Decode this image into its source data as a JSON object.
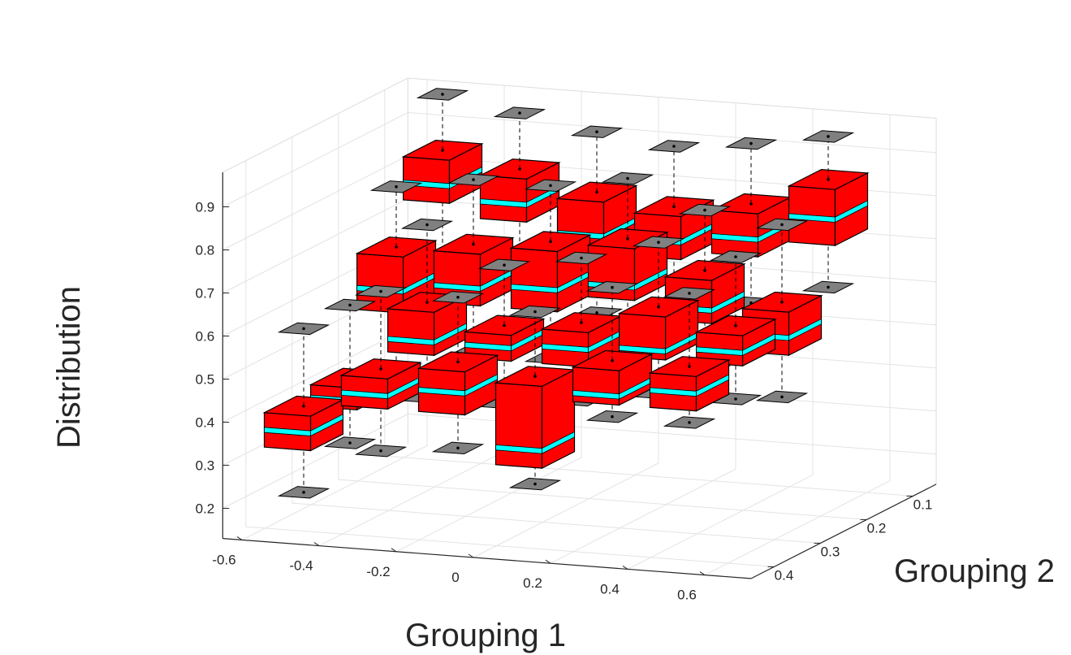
{
  "chart_data": {
    "type": "3d-box",
    "title": "",
    "xlabel": "Grouping 1",
    "ylabel": "Grouping 2",
    "zlabel": "Distribution",
    "xlim": [
      -0.65,
      0.72
    ],
    "ylim": [
      0.05,
      0.45
    ],
    "zlim": [
      0.13,
      0.98
    ],
    "xticks": [
      "-0.6",
      "-0.4",
      "-0.2",
      "0",
      "0.2",
      "0.4",
      "0.6"
    ],
    "yticks": [
      "0.1",
      "0.2",
      "0.3",
      "0.4"
    ],
    "zticks": [
      "0.2",
      "0.3",
      "0.4",
      "0.5",
      "0.6",
      "0.7",
      "0.8",
      "0.9"
    ],
    "grid": true,
    "colors": {
      "box": "#ff0000",
      "median": "#00ffff",
      "whisker_cap": "#808080",
      "edge": "#000000",
      "grid": "#e3e3e3"
    },
    "series": [
      {
        "x": -0.5,
        "y": 0.4,
        "min": 0.22,
        "q1": 0.34,
        "median": 0.38,
        "q3": 0.42,
        "max": 0.6
      },
      {
        "x": -0.3,
        "y": 0.4,
        "min": 0.33,
        "q1": 0.45,
        "median": 0.48,
        "q3": 0.52,
        "max": 0.7
      },
      {
        "x": -0.1,
        "y": 0.4,
        "min": 0.35,
        "q1": 0.45,
        "median": 0.5,
        "q3": 0.55,
        "max": 0.7
      },
      {
        "x": 0.1,
        "y": 0.4,
        "min": 0.28,
        "q1": 0.34,
        "median": 0.38,
        "q3": 0.53,
        "max": 0.68
      },
      {
        "x": 0.3,
        "y": 0.4,
        "min": 0.45,
        "q1": 0.5,
        "median": 0.52,
        "q3": 0.58,
        "max": 0.75
      },
      {
        "x": 0.5,
        "y": 0.4,
        "min": 0.45,
        "q1": 0.5,
        "median": 0.54,
        "q3": 0.58,
        "max": 0.75
      },
      {
        "x": -0.5,
        "y": 0.3,
        "min": 0.28,
        "q1": 0.38,
        "median": 0.4,
        "q3": 0.43,
        "max": 0.6
      },
      {
        "x": -0.3,
        "y": 0.3,
        "min": 0.4,
        "q1": 0.52,
        "median": 0.55,
        "q3": 0.62,
        "max": 0.8
      },
      {
        "x": -0.1,
        "y": 0.3,
        "min": 0.4,
        "q1": 0.52,
        "median": 0.55,
        "q3": 0.58,
        "max": 0.72
      },
      {
        "x": 0.1,
        "y": 0.3,
        "min": 0.42,
        "q1": 0.52,
        "median": 0.56,
        "q3": 0.6,
        "max": 0.75
      },
      {
        "x": 0.3,
        "y": 0.3,
        "min": 0.45,
        "q1": 0.55,
        "median": 0.57,
        "q3": 0.65,
        "max": 0.8
      },
      {
        "x": 0.5,
        "y": 0.3,
        "min": 0.45,
        "q1": 0.55,
        "median": 0.58,
        "q3": 0.62,
        "max": 0.78
      },
      {
        "x": -0.5,
        "y": 0.2,
        "min": 0.4,
        "q1": 0.55,
        "median": 0.6,
        "q3": 0.68,
        "max": 0.82
      },
      {
        "x": -0.3,
        "y": 0.2,
        "min": 0.45,
        "q1": 0.58,
        "median": 0.62,
        "q3": 0.7,
        "max": 0.85
      },
      {
        "x": -0.1,
        "y": 0.2,
        "min": 0.45,
        "q1": 0.58,
        "median": 0.63,
        "q3": 0.72,
        "max": 0.85
      },
      {
        "x": 0.1,
        "y": 0.2,
        "min": 0.48,
        "q1": 0.62,
        "median": 0.65,
        "q3": 0.74,
        "max": 0.88
      },
      {
        "x": 0.3,
        "y": 0.2,
        "min": 0.45,
        "q1": 0.58,
        "median": 0.61,
        "q3": 0.68,
        "max": 0.82
      },
      {
        "x": 0.5,
        "y": 0.2,
        "min": 0.4,
        "q1": 0.52,
        "median": 0.56,
        "q3": 0.62,
        "max": 0.8
      },
      {
        "x": -0.5,
        "y": 0.1,
        "min": 0.55,
        "q1": 0.75,
        "median": 0.79,
        "q3": 0.85,
        "max": 0.98
      },
      {
        "x": -0.3,
        "y": 0.1,
        "min": 0.55,
        "q1": 0.72,
        "median": 0.76,
        "q3": 0.82,
        "max": 0.95
      },
      {
        "x": -0.1,
        "y": 0.1,
        "min": 0.5,
        "q1": 0.66,
        "median": 0.7,
        "q3": 0.78,
        "max": 0.92
      },
      {
        "x": 0.1,
        "y": 0.1,
        "min": 0.52,
        "q1": 0.66,
        "median": 0.7,
        "q3": 0.76,
        "max": 0.9
      },
      {
        "x": 0.3,
        "y": 0.1,
        "min": 0.55,
        "q1": 0.68,
        "median": 0.72,
        "q3": 0.78,
        "max": 0.92
      },
      {
        "x": 0.5,
        "y": 0.1,
        "min": 0.6,
        "q1": 0.72,
        "median": 0.78,
        "q3": 0.85,
        "max": 0.95
      }
    ]
  }
}
